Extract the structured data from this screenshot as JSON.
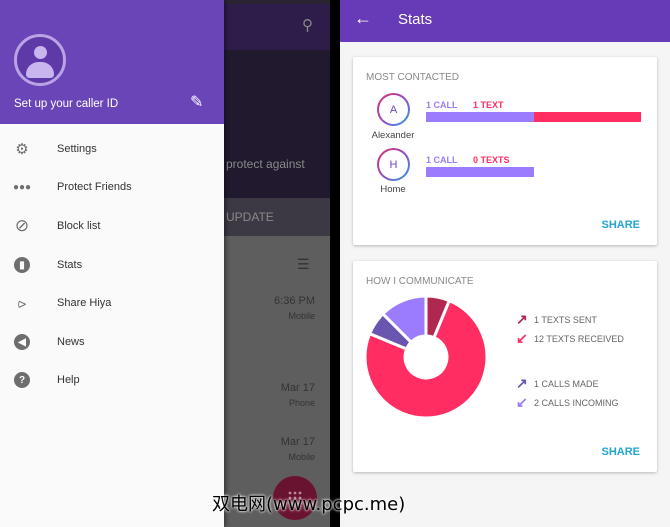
{
  "left": {
    "background": {
      "hero_text": "protect against",
      "update_label": "UPDATE",
      "calls": [
        {
          "time": "6:36 PM",
          "type": "Mobile"
        },
        {
          "time": "Mar 17",
          "type": "Phone"
        },
        {
          "time": "Mar 17",
          "type": "Mobile"
        }
      ]
    },
    "drawer": {
      "caller_id_label": "Set up your caller ID",
      "items": [
        {
          "label": "Settings",
          "icon": "gear-icon"
        },
        {
          "label": "Protect Friends",
          "icon": "people-icon"
        },
        {
          "label": "Block list",
          "icon": "block-icon"
        },
        {
          "label": "Stats",
          "icon": "stats-icon"
        },
        {
          "label": "Share Hiya",
          "icon": "share-icon"
        },
        {
          "label": "News",
          "icon": "megaphone-icon"
        },
        {
          "label": "Help",
          "icon": "help-icon"
        }
      ]
    }
  },
  "watermark": "双电网(www.pcpc.me)",
  "right": {
    "title": "Stats",
    "most_contacted": {
      "title": "MOST CONTACTED",
      "share": "SHARE",
      "contacts": [
        {
          "initial": "A",
          "name": "Alexander",
          "calls_label": "1 CALL",
          "texts_label": "1 TEXT",
          "calls": 1,
          "texts": 1
        },
        {
          "initial": "H",
          "name": "Home",
          "calls_label": "1 CALL",
          "texts_label": "0 TEXTS",
          "calls": 1,
          "texts": 0
        }
      ]
    },
    "how_i_communicate": {
      "title": "HOW I COMMUNICATE",
      "share": "SHARE",
      "chart_data": {
        "type": "pie",
        "donut": true,
        "slices": [
          {
            "label": "1 TEXTS SENT",
            "value": 1,
            "color": "#b0284f",
            "icon": "arrow-up-right-icon"
          },
          {
            "label": "12 TEXTS RECEIVED",
            "value": 12,
            "color": "#ff2d62",
            "icon": "arrow-down-left-icon"
          },
          {
            "label": "1 CALLS MADE",
            "value": 1,
            "color": "#6a56b0",
            "icon": "arrow-up-right-icon"
          },
          {
            "label": "2 CALLS INCOMING",
            "value": 2,
            "color": "#9b7cff",
            "icon": "arrow-down-left-icon"
          }
        ]
      }
    }
  },
  "colors": {
    "primary": "#673ab7",
    "calls": "#9b7cff",
    "texts": "#ff2d62",
    "share": "#21a5d2"
  }
}
